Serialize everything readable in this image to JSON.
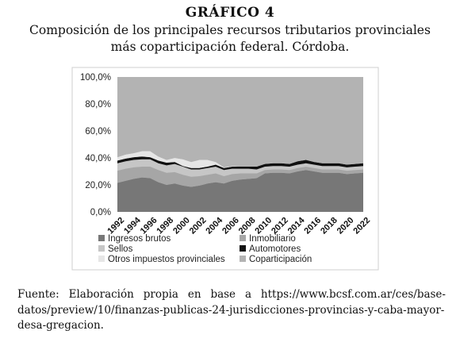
{
  "figure": {
    "label": "GRÁFICO 4",
    "title_line1": "Composición de los principales recursos tributarios provinciales",
    "title_line2": "más coparticipación federal. Córdoba."
  },
  "source": {
    "prefix": "Fuente:",
    "text": "Elaboración propia en base a https://www.bcsf.com.ar/ces/base-datos/preview/10/finanzas-publicas-24-jurisdicciones-provincias-y-caba-mayor-desa-gregacion."
  },
  "colors": {
    "plot_bg": "#b3b3b3",
    "ingresos_brutos": "#777777",
    "inmobiliario": "#a6a6a6",
    "sellos": "#c6c6c6",
    "automotores": "#111111",
    "otros": "#e6e6e6",
    "coparticipacion": "#b3b3b3"
  },
  "chart_data": {
    "type": "area",
    "stacked": true,
    "x": [
      1992,
      1993,
      1994,
      1995,
      1996,
      1997,
      1998,
      1999,
      2000,
      2001,
      2002,
      2003,
      2004,
      2005,
      2006,
      2007,
      2008,
      2009,
      2010,
      2011,
      2012,
      2013,
      2014,
      2015,
      2016,
      2017,
      2018,
      2019,
      2020,
      2021,
      2022
    ],
    "x_tick_labels": [
      "1992",
      "1994",
      "1996",
      "1998",
      "2000",
      "2002",
      "2004",
      "2006",
      "2008",
      "2010",
      "2012",
      "2014",
      "2016",
      "2018",
      "2020",
      "2022"
    ],
    "y_tick_labels": [
      "0,0%",
      "20,0%",
      "40,0%",
      "60,0%",
      "80,0%",
      "100,0%"
    ],
    "ylim": [
      0,
      100
    ],
    "series": [
      {
        "name": "Ingresos brutos",
        "values": [
          21.5,
          23,
          24.5,
          25.5,
          25,
          22,
          20,
          21,
          19.5,
          18.5,
          19.5,
          21,
          22,
          21,
          23,
          24,
          24.5,
          25,
          28.5,
          29,
          29,
          28.5,
          30,
          31,
          30,
          29,
          29,
          29,
          28,
          28.5,
          29
        ]
      },
      {
        "name": "Inmobiliario",
        "values": [
          9,
          9,
          8.5,
          8,
          8.5,
          9,
          9,
          8.5,
          8,
          7.5,
          7,
          6.5,
          6.5,
          5.5,
          5,
          4.5,
          4,
          3.5,
          2.5,
          2.5,
          2.5,
          2.5,
          2.5,
          2.5,
          2.5,
          2.5,
          2.5,
          2.5,
          2.5,
          2.5,
          2.5
        ]
      },
      {
        "name": "Sellos",
        "values": [
          5.5,
          5.5,
          5.5,
          5.5,
          5.5,
          5,
          5.5,
          6,
          6,
          5.5,
          5,
          5,
          5,
          4.5,
          4,
          3.5,
          3.5,
          3,
          2.5,
          2.5,
          2.5,
          2.5,
          2.5,
          2.5,
          2.5,
          2.5,
          2.5,
          2.5,
          2.5,
          2.5,
          2.5
        ]
      },
      {
        "name": "Automotores",
        "values": [
          2,
          2,
          2,
          2,
          1.5,
          2,
          2,
          1.5,
          0.5,
          1,
          1,
          1,
          1.5,
          1.5,
          1.5,
          1.5,
          1.5,
          2,
          2,
          2,
          2,
          2,
          2.5,
          2.5,
          2,
          2,
          2,
          2,
          2,
          2,
          2
        ]
      },
      {
        "name": "Otros impuestos provinciales",
        "values": [
          2.5,
          3,
          3,
          4,
          4.5,
          3,
          2,
          3,
          5,
          4.5,
          6,
          5,
          2,
          0.5,
          0.5,
          0,
          0,
          0,
          0,
          0,
          0,
          0,
          0,
          0,
          0,
          0,
          0,
          0,
          0,
          0,
          0
        ]
      },
      {
        "name": "Coparticipación",
        "values": [
          59.5,
          57.5,
          56.5,
          55,
          55,
          59,
          61.5,
          60,
          61,
          63,
          61.5,
          61.5,
          63,
          67,
          66,
          66.5,
          66.5,
          66.5,
          64.5,
          64,
          64,
          64.5,
          62.5,
          61.5,
          63,
          64,
          64,
          64,
          65,
          64.5,
          64
        ]
      }
    ],
    "legend": [
      {
        "name": "Ingresos brutos"
      },
      {
        "name": "Inmobiliario"
      },
      {
        "name": "Sellos"
      },
      {
        "name": "Automotores"
      },
      {
        "name": "Otros impuestos provinciales"
      },
      {
        "name": "Coparticipación"
      }
    ],
    "legend_position": "bottom",
    "grid": false
  }
}
